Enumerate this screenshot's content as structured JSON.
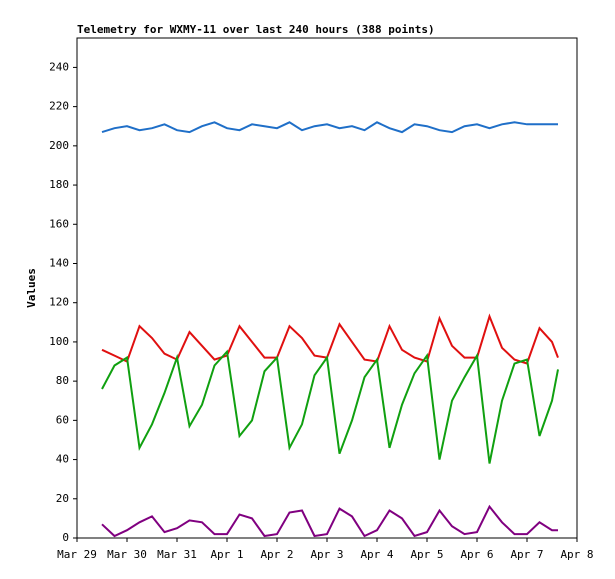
{
  "chart_data": {
    "type": "line",
    "title": "Telemetry for WXMY-11 over last 240 hours (388 points)",
    "ylabel": "Values",
    "x": [
      0.5,
      0.75,
      1.0,
      1.25,
      1.5,
      1.75,
      2.0,
      2.25,
      2.5,
      2.75,
      3.0,
      3.25,
      3.5,
      3.75,
      4.0,
      4.25,
      4.5,
      4.75,
      5.0,
      5.25,
      5.5,
      5.75,
      6.0,
      6.25,
      6.5,
      6.75,
      7.0,
      7.25,
      7.5,
      7.75,
      8.0,
      8.25,
      8.5,
      8.75,
      9.0,
      9.25,
      9.5,
      9.62
    ],
    "series": [
      {
        "color": "#1f6fc8",
        "values": [
          207,
          209,
          210,
          208,
          209,
          211,
          208,
          207,
          210,
          212,
          209,
          208,
          211,
          210,
          209,
          212,
          208,
          210,
          211,
          209,
          210,
          208,
          212,
          209,
          207,
          211,
          210,
          208,
          207,
          210,
          211,
          209,
          211,
          212,
          211,
          211,
          211,
          211
        ]
      },
      {
        "color": "#e01010",
        "values": [
          96,
          93,
          90,
          108,
          102,
          94,
          91,
          105,
          98,
          91,
          93,
          108,
          100,
          92,
          92,
          108,
          102,
          93,
          92,
          109,
          100,
          91,
          90,
          108,
          96,
          92,
          90,
          112,
          98,
          92,
          92,
          113,
          97,
          91,
          89,
          107,
          100,
          92
        ]
      },
      {
        "color": "#10a010",
        "values": [
          76,
          88,
          92,
          46,
          58,
          74,
          92,
          57,
          68,
          88,
          95,
          52,
          60,
          85,
          92,
          46,
          58,
          83,
          92,
          43,
          60,
          82,
          91,
          46,
          68,
          84,
          93,
          40,
          70,
          82,
          93,
          38,
          70,
          89,
          91,
          52,
          70,
          86
        ]
      },
      {
        "color": "#800080",
        "values": [
          7,
          1,
          4,
          8,
          11,
          3,
          5,
          9,
          8,
          2,
          2,
          12,
          10,
          1,
          2,
          13,
          14,
          1,
          2,
          15,
          11,
          1,
          4,
          14,
          10,
          1,
          3,
          14,
          6,
          2,
          3,
          16,
          8,
          2,
          2,
          8,
          4,
          4
        ]
      }
    ],
    "xlim": [
      0,
      10
    ],
    "xticks": [
      {
        "value": 0,
        "label": "Mar 29"
      },
      {
        "value": 1,
        "label": "Mar 30"
      },
      {
        "value": 2,
        "label": "Mar 31"
      },
      {
        "value": 3,
        "label": "Apr 1"
      },
      {
        "value": 4,
        "label": "Apr 2"
      },
      {
        "value": 5,
        "label": "Apr 3"
      },
      {
        "value": 6,
        "label": "Apr 4"
      },
      {
        "value": 7,
        "label": "Apr 5"
      },
      {
        "value": 8,
        "label": "Apr 6"
      },
      {
        "value": 9,
        "label": "Apr 7"
      },
      {
        "value": 10,
        "label": "Apr 8"
      }
    ],
    "ylim": [
      0,
      255
    ],
    "yticks": [
      0,
      20,
      40,
      60,
      80,
      100,
      120,
      140,
      160,
      180,
      200,
      220,
      240
    ]
  }
}
